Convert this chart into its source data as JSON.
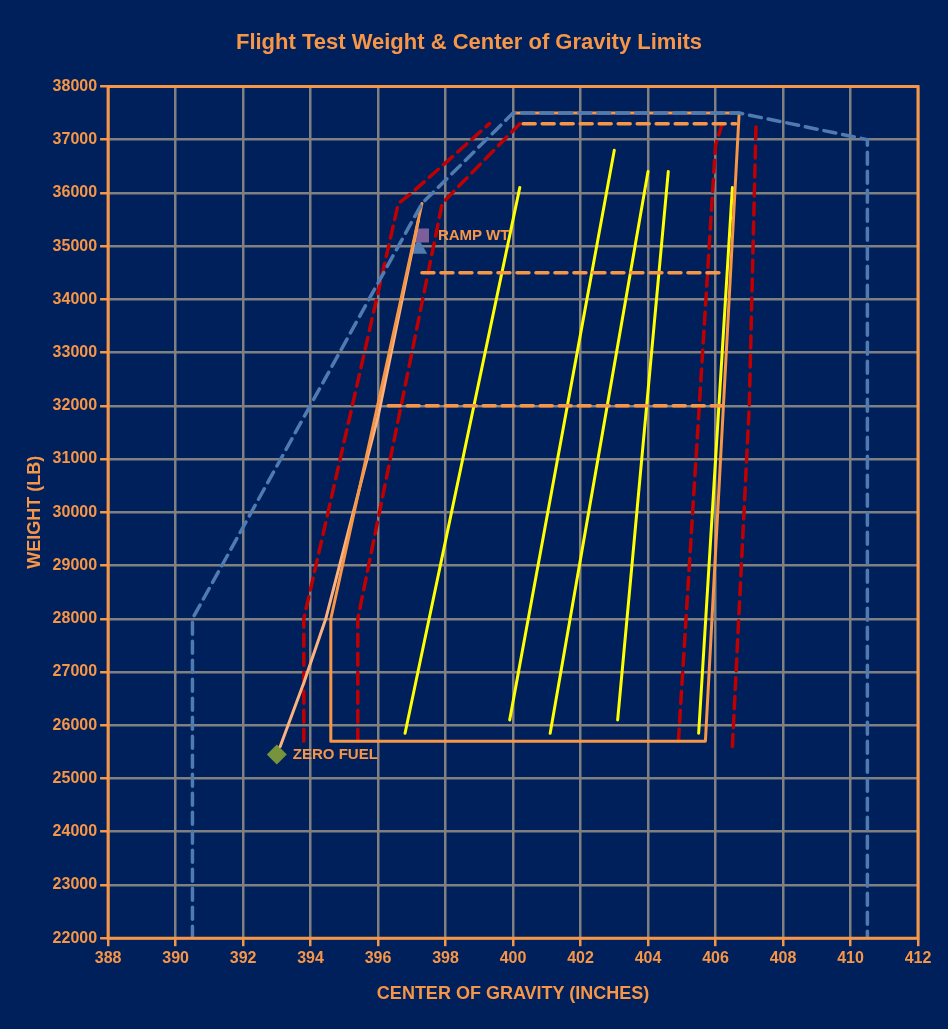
{
  "chart_data": {
    "type": "line",
    "title": "Flight Test Weight & Center of Gravity Limits",
    "xlabel": "CENTER OF GRAVITY (INCHES)",
    "ylabel": "WEIGHT (LB)",
    "xlim": [
      388,
      412
    ],
    "xticks": [
      388,
      390,
      392,
      394,
      396,
      398,
      400,
      402,
      404,
      406,
      408,
      410,
      412
    ],
    "ylim": [
      22000,
      38000
    ],
    "yticks": [
      22000,
      23000,
      24000,
      25000,
      26000,
      27000,
      28000,
      29000,
      30000,
      31000,
      32000,
      33000,
      34000,
      35000,
      36000,
      37000,
      38000
    ],
    "grid": true,
    "legend": false,
    "marker": "none",
    "line_style": "solid",
    "series": [
      {
        "color": "#4f7bb0",
        "line_style": "dashed",
        "x": [
          390.5,
          390.5,
          397.3,
          400,
          406.7,
          410.5,
          410.5
        ],
        "values": [
          22000,
          28000,
          35800,
          37500,
          37500,
          37000,
          22000
        ]
      },
      {
        "color": "#f79646",
        "x": [
          397.3,
          394.6,
          394.6,
          405.7,
          406.7,
          400
        ],
        "values": [
          35800,
          28000,
          25700,
          25700,
          37500,
          37500
        ]
      },
      {
        "color": "#fbb27e",
        "x": [
          393.1,
          393.8,
          394.45,
          396,
          397.2
        ],
        "values": [
          25600,
          26800,
          28000,
          31800,
          35500
        ]
      },
      {
        "color": "#f79646",
        "line_style": "dashed",
        "x": [
          397.3,
          406.3
        ],
        "values": [
          34500,
          34500
        ]
      },
      {
        "color": "#f79646",
        "line_style": "dashed",
        "x": [
          396.3,
          406.2
        ],
        "values": [
          32000,
          32000
        ]
      },
      {
        "color": "#f79646",
        "line_style": "dashed",
        "x": [
          400.3,
          406.6
        ],
        "values": [
          37300,
          37300
        ]
      },
      {
        "color": "#c00000",
        "line_style": "dashed",
        "x": [
          393.8,
          393.8,
          396.6,
          397,
          399.3
        ],
        "values": [
          25700,
          28000,
          35800,
          36000,
          37300
        ]
      },
      {
        "color": "#c00000",
        "line_style": "dashed",
        "x": [
          395.4,
          395.4,
          397.9,
          398.2,
          400.2
        ],
        "values": [
          25700,
          28000,
          35800,
          36000,
          37300
        ]
      },
      {
        "color": "#c00000",
        "line_style": "dashed",
        "x": [
          404.9,
          406,
          406.2
        ],
        "values": [
          25700,
          36900,
          37300
        ]
      },
      {
        "color": "#c00000",
        "line_style": "dashed",
        "x": [
          406.5,
          407,
          407.2
        ],
        "values": [
          25600,
          32000,
          37300
        ]
      },
      {
        "color": "#ffff00",
        "x": [
          396.8,
          400.2
        ],
        "values": [
          25850,
          36100
        ]
      },
      {
        "color": "#ffff00",
        "x": [
          399.9,
          403
        ],
        "values": [
          26100,
          36800
        ]
      },
      {
        "color": "#ffff00",
        "x": [
          401.1,
          404
        ],
        "values": [
          25850,
          36400
        ]
      },
      {
        "color": "#ffff00",
        "x": [
          403.1,
          404.6
        ],
        "values": [
          26100,
          36400
        ]
      },
      {
        "color": "#ffff00",
        "x": [
          405.5,
          406.5
        ],
        "values": [
          25850,
          36100
        ]
      },
      {
        "type": "scatter",
        "color": "#77933c",
        "marker": "diamond",
        "x": [
          393
        ],
        "values": [
          25450
        ]
      },
      {
        "type": "scatter",
        "color": "#7b5e9a",
        "marker": "square",
        "x": [
          397.3
        ],
        "values": [
          35200
        ]
      },
      {
        "type": "scatter",
        "color": "#4f7bb0",
        "marker": "triangle",
        "x": [
          397.2
        ],
        "values": [
          34950
        ]
      }
    ],
    "annotations": [
      {
        "text": "RAMP WT",
        "x": 397.3,
        "y": 35200
      },
      {
        "text": "ZERO FUEL",
        "x": 393,
        "y": 25450
      }
    ]
  }
}
